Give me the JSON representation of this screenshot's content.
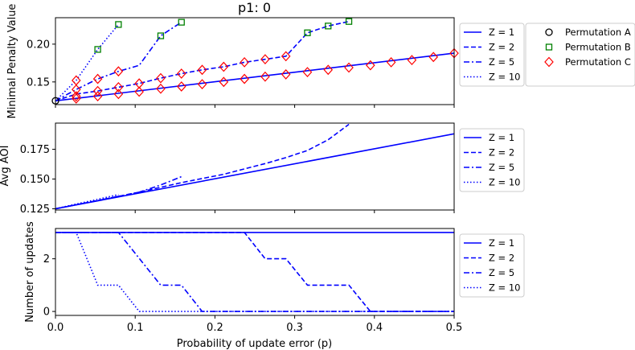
{
  "chart_data": [
    {
      "type": "line",
      "title": "p1: 0",
      "ylabel": "Minimal Penalty Value",
      "xlabel": "",
      "xlim": [
        0,
        0.5
      ],
      "ylim": [
        0.12,
        0.235
      ],
      "yticks": [
        0.15,
        0.2
      ],
      "ytick_labels": [
        "0.15",
        "0.20"
      ],
      "series": [
        {
          "name": "Z = 1",
          "style": "solid",
          "x": [
            0,
            0.5
          ],
          "y": [
            0.125,
            0.188
          ]
        },
        {
          "name": "Z = 2",
          "style": "dashed",
          "x": [
            0,
            0.026,
            0.053,
            0.079,
            0.105,
            0.132,
            0.158,
            0.184,
            0.211,
            0.237,
            0.263,
            0.289,
            0.316,
            0.342,
            0.368
          ],
          "y": [
            0.125,
            0.134,
            0.138,
            0.143,
            0.148,
            0.155,
            0.161,
            0.166,
            0.17,
            0.176,
            0.18,
            0.184,
            0.215,
            0.224,
            0.23
          ]
        },
        {
          "name": "Z = 5",
          "style": "dashdot",
          "x": [
            0,
            0.026,
            0.053,
            0.079,
            0.105,
            0.132,
            0.158
          ],
          "y": [
            0.125,
            0.14,
            0.154,
            0.164,
            0.172,
            0.211,
            0.229
          ]
        },
        {
          "name": "Z = 10",
          "style": "dotted",
          "x": [
            0,
            0.026,
            0.053,
            0.079
          ],
          "y": [
            0.125,
            0.152,
            0.193,
            0.226
          ]
        }
      ],
      "markers": [
        {
          "name": "Permutation A",
          "shape": "circle",
          "color": "#000000",
          "x": [
            0
          ],
          "y": [
            0.125
          ]
        },
        {
          "name": "Permutation B",
          "shape": "square",
          "color": "#008000",
          "x": [
            0.053,
            0.079,
            0.132,
            0.158,
            0.316,
            0.342,
            0.368
          ],
          "y": [
            0.193,
            0.226,
            0.211,
            0.229,
            0.215,
            0.224,
            0.23
          ]
        },
        {
          "name": "Permutation C",
          "shape": "diamond",
          "color": "#ff0000",
          "x": [
            0.026,
            0.026,
            0.026,
            0.026,
            0.053,
            0.053,
            0.053,
            0.079,
            0.079,
            0.079,
            0.105,
            0.105,
            0.132,
            0.132,
            0.158,
            0.158,
            0.184,
            0.184,
            0.211,
            0.211,
            0.237,
            0.237,
            0.263,
            0.263,
            0.289,
            0.289,
            0.316,
            0.342,
            0.368,
            0.395,
            0.421,
            0.447,
            0.474,
            0.5
          ],
          "y": [
            0.128,
            0.131,
            0.14,
            0.152,
            0.131,
            0.138,
            0.154,
            0.134,
            0.143,
            0.164,
            0.137,
            0.148,
            0.141,
            0.155,
            0.144,
            0.161,
            0.147,
            0.166,
            0.15,
            0.17,
            0.154,
            0.176,
            0.157,
            0.18,
            0.16,
            0.184,
            0.163,
            0.166,
            0.169,
            0.172,
            0.176,
            0.179,
            0.183,
            0.188
          ]
        }
      ],
      "legend_placement": "right-outside"
    },
    {
      "type": "line",
      "title": "",
      "ylabel": "Avg AOI",
      "xlabel": "",
      "xlim": [
        0,
        0.5
      ],
      "ylim": [
        0.124,
        0.197
      ],
      "yticks": [
        0.125,
        0.15,
        0.175
      ],
      "ytick_labels": [
        "0.125",
        "0.150",
        "0.175"
      ],
      "series": [
        {
          "name": "Z = 1",
          "style": "solid",
          "x": [
            0,
            0.5
          ],
          "y": [
            0.125,
            0.188
          ]
        },
        {
          "name": "Z = 2",
          "style": "dashed",
          "x": [
            0,
            0.053,
            0.105,
            0.158,
            0.211,
            0.263,
            0.289,
            0.316,
            0.342,
            0.368
          ],
          "y": [
            0.125,
            0.132,
            0.139,
            0.147,
            0.154,
            0.163,
            0.168,
            0.174,
            0.183,
            0.196
          ]
        },
        {
          "name": "Z = 5",
          "style": "dashdot",
          "x": [
            0,
            0.053,
            0.105,
            0.132,
            0.158
          ],
          "y": [
            0.125,
            0.132,
            0.139,
            0.145,
            0.152
          ]
        },
        {
          "name": "Z = 10",
          "style": "dotted",
          "x": [
            0,
            0.026,
            0.053,
            0.079
          ],
          "y": [
            0.125,
            0.129,
            0.133,
            0.137
          ]
        }
      ],
      "legend_placement": "right-outside"
    },
    {
      "type": "line",
      "title": "",
      "ylabel": "Number of updates",
      "xlabel": "Probability of update error (p)",
      "xlim": [
        0,
        0.5
      ],
      "ylim": [
        -0.15,
        3.15
      ],
      "yticks": [
        0,
        2
      ],
      "ytick_labels": [
        "0",
        "2"
      ],
      "xticks": [
        0,
        0.1,
        0.2,
        0.3,
        0.4,
        0.5
      ],
      "xtick_labels": [
        "0.0",
        "0.1",
        "0.2",
        "0.3",
        "0.4",
        "0.5"
      ],
      "series": [
        {
          "name": "Z = 1",
          "style": "solid",
          "x": [
            0,
            0.5
          ],
          "y": [
            3,
            3
          ]
        },
        {
          "name": "Z = 2",
          "style": "dashed",
          "x": [
            0,
            0.237,
            0.263,
            0.289,
            0.316,
            0.368,
            0.395,
            0.5
          ],
          "y": [
            3,
            3,
            2,
            2,
            1,
            1,
            0,
            0
          ]
        },
        {
          "name": "Z = 5",
          "style": "dashdot",
          "x": [
            0,
            0.079,
            0.132,
            0.158,
            0.184,
            0.5
          ],
          "y": [
            3,
            3,
            1,
            1,
            0,
            0
          ]
        },
        {
          "name": "Z = 10",
          "style": "dotted",
          "x": [
            0,
            0.026,
            0.053,
            0.079,
            0.105,
            0.5
          ],
          "y": [
            3,
            3,
            1,
            1,
            0,
            0
          ]
        }
      ],
      "legend_placement": "right-outside"
    }
  ],
  "colors": {
    "line": "#0000ff",
    "axis": "#000000",
    "legend_border": "#cccccc"
  }
}
